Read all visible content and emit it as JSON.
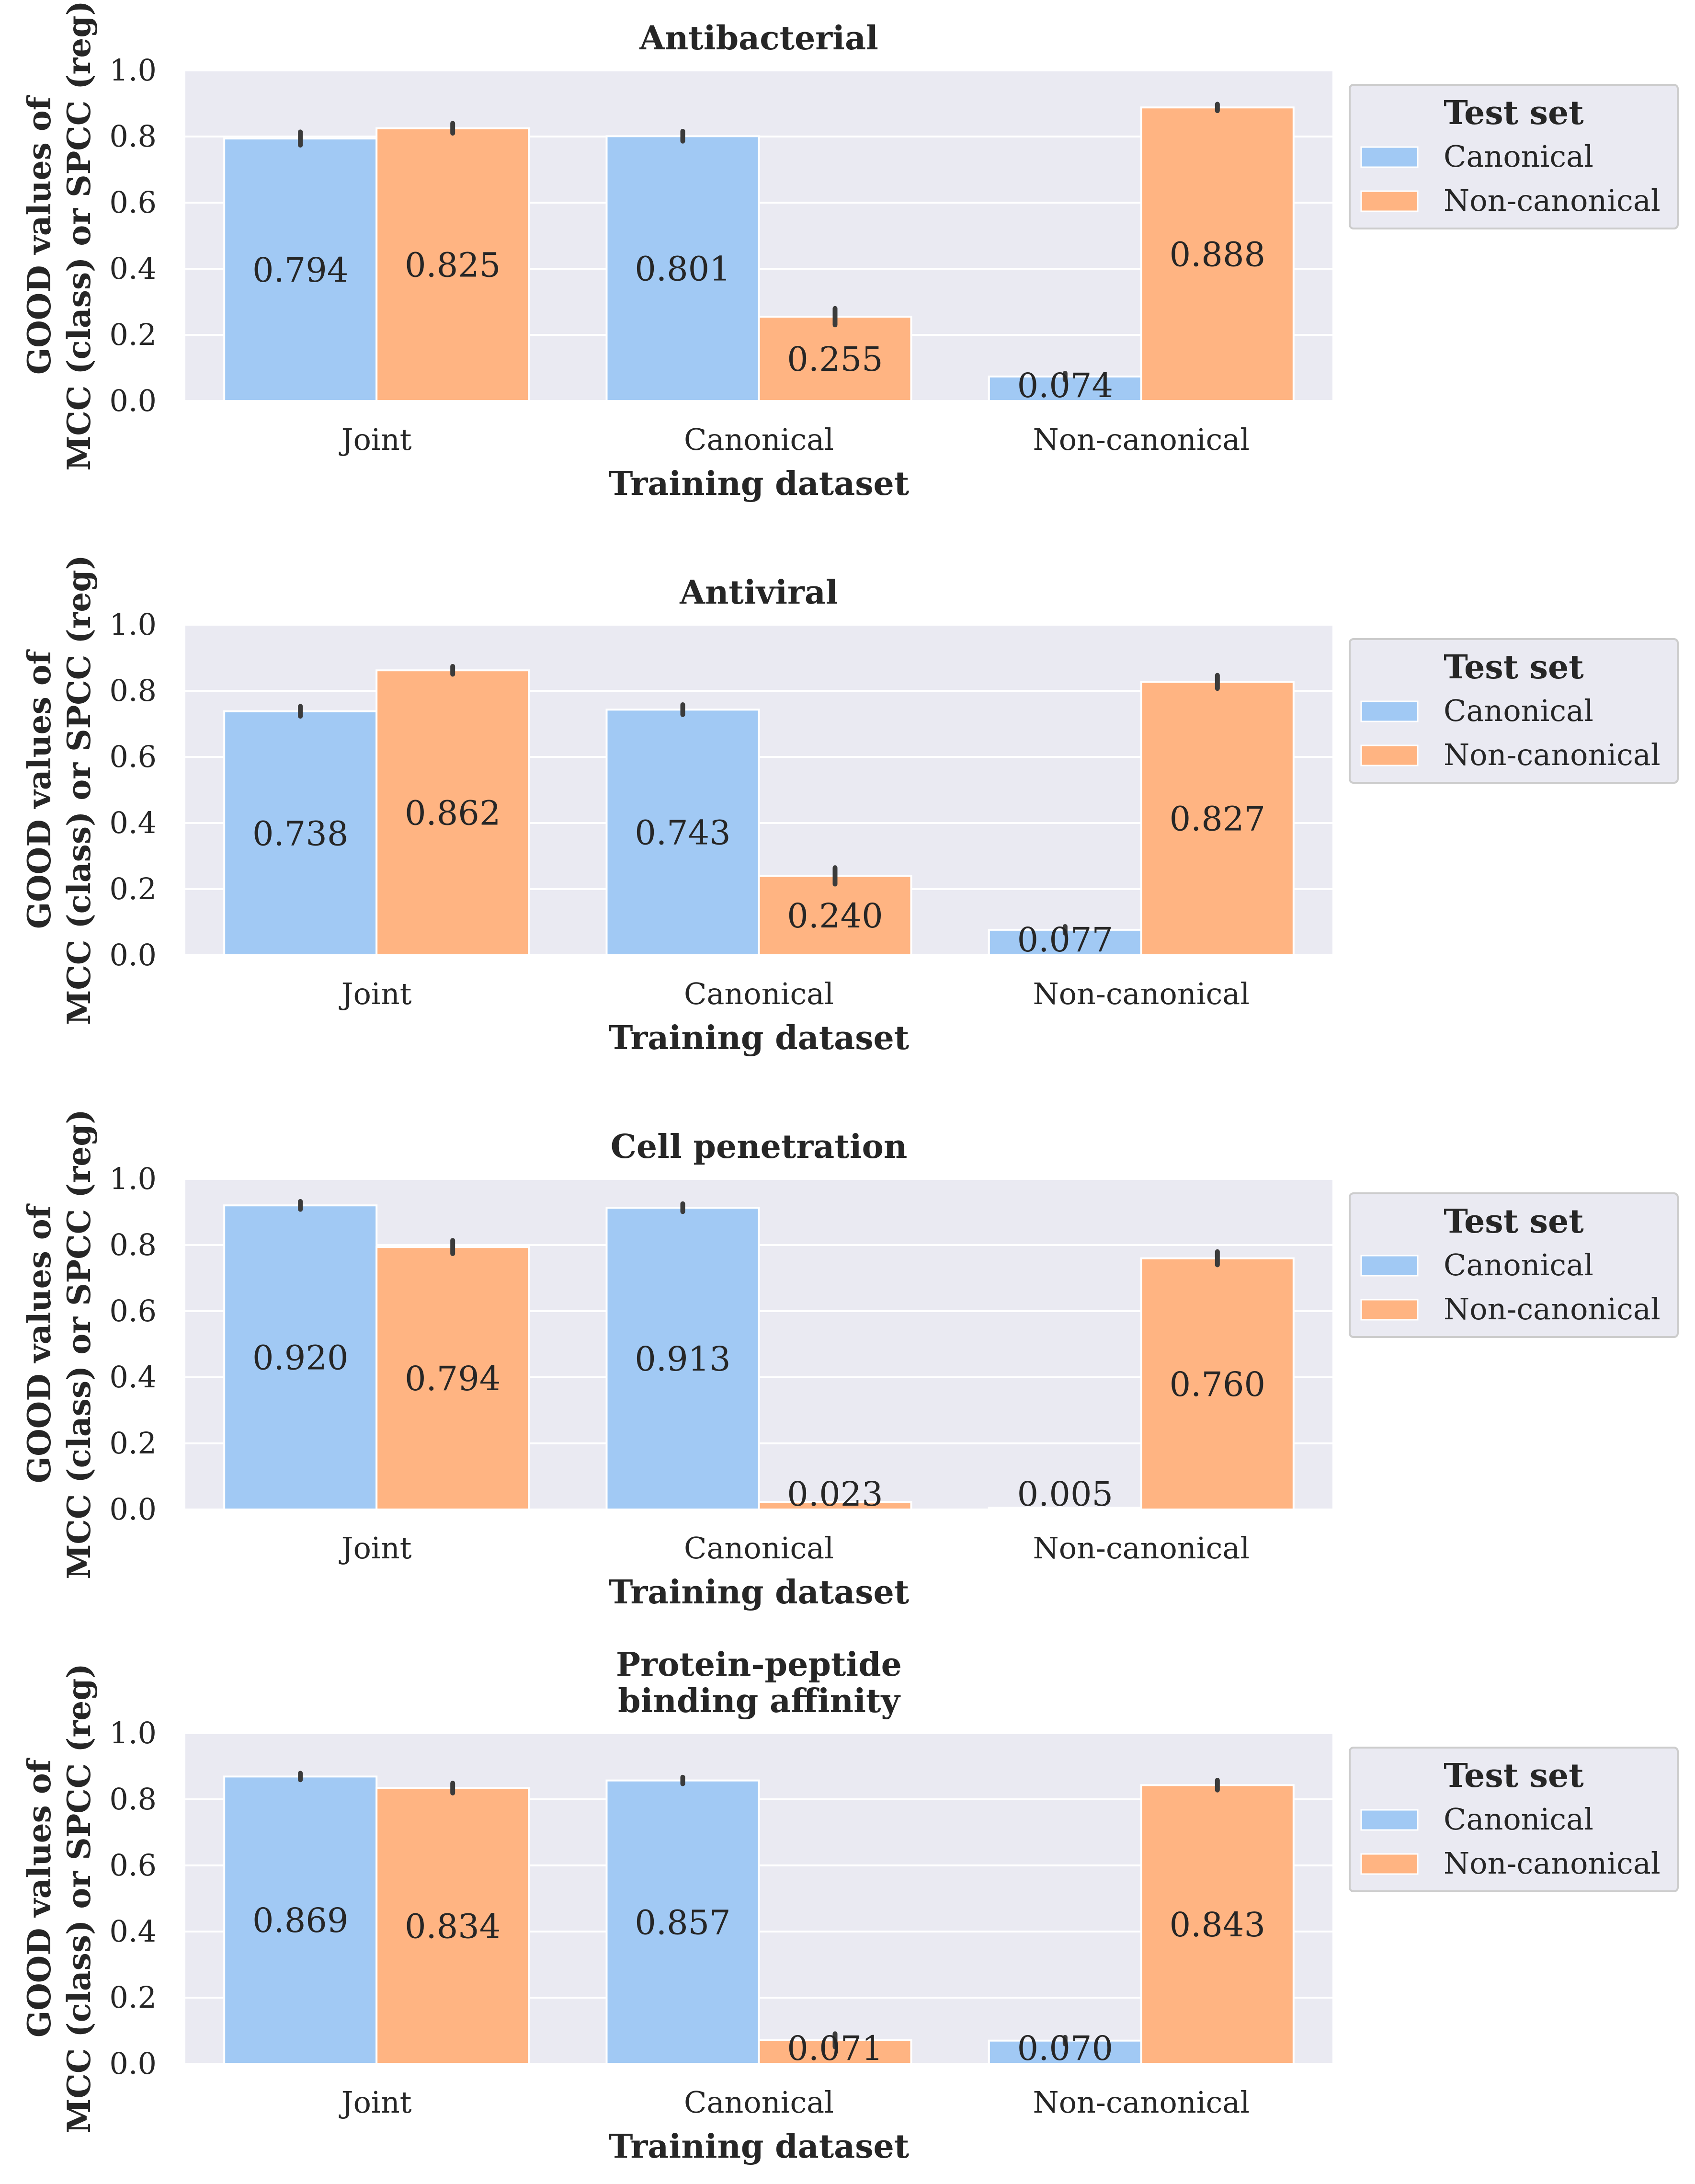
{
  "colors": {
    "canonical": "#a1c9f4",
    "non_canonical": "#ffb482",
    "panel_bg": "#eaeaf2",
    "grid": "#ffffff",
    "error_bar": "#3b3b3b"
  },
  "chart_data": [
    {
      "type": "bar",
      "title": "Antibacterial",
      "xlabel": "Training dataset",
      "ylabel": "GOOD values of\nMCC (class) or SPCC (reg)",
      "categories": [
        "Joint",
        "Canonical",
        "Non-canonical"
      ],
      "ylim": [
        0,
        1.0
      ],
      "yticks": [
        "0.0",
        "0.2",
        "0.4",
        "0.6",
        "0.8",
        "1.0"
      ],
      "grid": true,
      "legend": {
        "title": "Test set",
        "placement": "outside-right",
        "entries": [
          "Canonical",
          "Non-canonical"
        ]
      },
      "series": [
        {
          "name": "Canonical",
          "values": [
            0.794,
            0.801,
            0.074
          ],
          "labels": [
            "0.794",
            "0.801",
            "0.074"
          ],
          "err": [
            0.02,
            0.015,
            0.01
          ]
        },
        {
          "name": "Non-canonical",
          "values": [
            0.825,
            0.255,
            0.888
          ],
          "labels": [
            "0.825",
            "0.255",
            "0.888"
          ],
          "err": [
            0.015,
            0.025,
            0.01
          ]
        }
      ]
    },
    {
      "type": "bar",
      "title": "Antiviral",
      "xlabel": "Training dataset",
      "ylabel": "GOOD values of\nMCC (class) or SPCC (reg)",
      "categories": [
        "Joint",
        "Canonical",
        "Non-canonical"
      ],
      "ylim": [
        0,
        1.0
      ],
      "yticks": [
        "0.0",
        "0.2",
        "0.4",
        "0.6",
        "0.8",
        "1.0"
      ],
      "grid": true,
      "legend": {
        "title": "Test set",
        "placement": "outside-right",
        "entries": [
          "Canonical",
          "Non-canonical"
        ]
      },
      "series": [
        {
          "name": "Canonical",
          "values": [
            0.738,
            0.743,
            0.077
          ],
          "labels": [
            "0.738",
            "0.743",
            "0.077"
          ],
          "err": [
            0.015,
            0.015,
            0.01
          ]
        },
        {
          "name": "Non-canonical",
          "values": [
            0.862,
            0.24,
            0.827
          ],
          "labels": [
            "0.862",
            "0.240",
            "0.827"
          ],
          "err": [
            0.012,
            0.025,
            0.02
          ]
        }
      ]
    },
    {
      "type": "bar",
      "title": "Cell penetration",
      "xlabel": "Training dataset",
      "ylabel": "GOOD values of\nMCC (class) or SPCC (reg)",
      "categories": [
        "Joint",
        "Canonical",
        "Non-canonical"
      ],
      "ylim": [
        0,
        1.0
      ],
      "yticks": [
        "0.0",
        "0.2",
        "0.4",
        "0.6",
        "0.8",
        "1.0"
      ],
      "grid": true,
      "legend": {
        "title": "Test set",
        "placement": "outside-right",
        "entries": [
          "Canonical",
          "Non-canonical"
        ]
      },
      "series": [
        {
          "name": "Canonical",
          "values": [
            0.92,
            0.913,
            0.005
          ],
          "labels": [
            "0.920",
            "0.913",
            "0.005"
          ],
          "err": [
            0.012,
            0.012,
            0.0
          ]
        },
        {
          "name": "Non-canonical",
          "values": [
            0.794,
            0.023,
            0.76
          ],
          "labels": [
            "0.794",
            "0.023",
            "0.760"
          ],
          "err": [
            0.02,
            0.0,
            0.02
          ]
        }
      ]
    },
    {
      "type": "bar",
      "title": "Protein-peptide\nbinding affinity",
      "xlabel": "Training dataset",
      "ylabel": "GOOD values of\nMCC (class) or SPCC (reg)",
      "categories": [
        "Joint",
        "Canonical",
        "Non-canonical"
      ],
      "ylim": [
        0,
        1.0
      ],
      "yticks": [
        "0.0",
        "0.2",
        "0.4",
        "0.6",
        "0.8",
        "1.0"
      ],
      "grid": true,
      "legend": {
        "title": "Test set",
        "placement": "outside-right",
        "entries": [
          "Canonical",
          "Non-canonical"
        ]
      },
      "series": [
        {
          "name": "Canonical",
          "values": [
            0.869,
            0.857,
            0.07
          ],
          "labels": [
            "0.869",
            "0.857",
            "0.070"
          ],
          "err": [
            0.01,
            0.01,
            0.01
          ]
        },
        {
          "name": "Non-canonical",
          "values": [
            0.834,
            0.071,
            0.843
          ],
          "labels": [
            "0.834",
            "0.071",
            "0.843"
          ],
          "err": [
            0.015,
            0.02,
            0.015
          ]
        }
      ]
    }
  ]
}
